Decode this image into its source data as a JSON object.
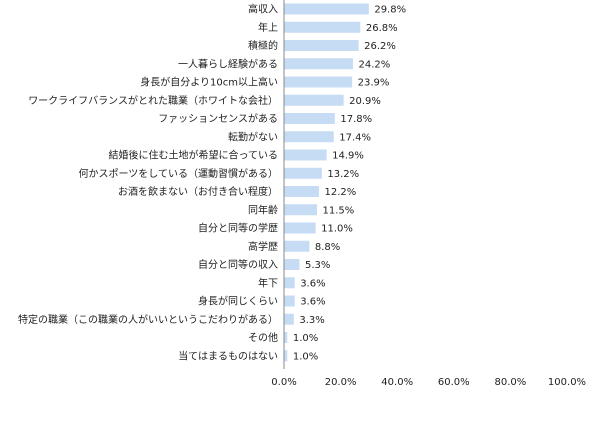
{
  "chart_data": {
    "type": "bar",
    "orientation": "horizontal",
    "categories": [
      "高収入",
      "年上",
      "積極的",
      "一人暮らし経験がある",
      "身長が自分より10cm以上高い",
      "ワークライフバランスがとれた職業（ホワイトな会社）",
      "ファッションセンスがある",
      "転勤がない",
      "結婚後に住む土地が希望に合っている",
      "何かスポーツをしている（運動習慣がある）",
      "お酒を飲まない（お付き合い程度）",
      "同年齢",
      "自分と同等の学歴",
      "高学歴",
      "自分と同等の収入",
      "年下",
      "身長が同じくらい",
      "特定の職業（この職業の人がいいというこだわりがある）",
      "その他",
      "当てはまるものはない"
    ],
    "values": [
      29.8,
      26.8,
      26.2,
      24.2,
      23.9,
      20.9,
      17.8,
      17.4,
      14.9,
      13.2,
      12.2,
      11.5,
      11.0,
      8.8,
      5.3,
      3.6,
      3.6,
      3.3,
      1.0,
      1.0
    ],
    "value_labels": [
      "29.8%",
      "26.8%",
      "26.2%",
      "24.2%",
      "23.9%",
      "20.9%",
      "17.8%",
      "17.4%",
      "14.9%",
      "13.2%",
      "12.2%",
      "11.5%",
      "11.0%",
      "8.8%",
      "5.3%",
      "3.6%",
      "3.6%",
      "3.3%",
      "1.0%",
      "1.0%"
    ],
    "xlim": [
      0,
      100
    ],
    "x_ticks": [
      0,
      20,
      40,
      60,
      80,
      100
    ],
    "x_tick_labels": [
      "0.0%",
      "20.0%",
      "40.0%",
      "60.0%",
      "80.0%",
      "100.0%"
    ],
    "title": "",
    "xlabel": "",
    "ylabel": "",
    "grid": false,
    "bar_color": "#c6dcf4",
    "axis_color": "#888888"
  }
}
